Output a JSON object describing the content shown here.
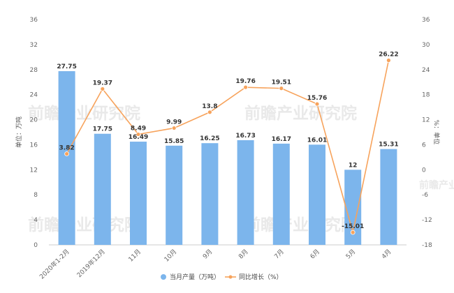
{
  "chart_data": {
    "type": "bar",
    "categories": [
      "2020年1-2月",
      "2019年12月",
      "11月",
      "10月",
      "9月",
      "8月",
      "7月",
      "6月",
      "5月",
      "4月"
    ],
    "series": [
      {
        "name": "当月产量（万吨）",
        "type": "bar",
        "axis": "left",
        "values": [
          27.75,
          17.75,
          16.49,
          15.85,
          16.25,
          16.73,
          16.17,
          16.01,
          12,
          15.31
        ],
        "labels": [
          "27.75",
          "17.75",
          "16.49",
          "15.85",
          "16.25",
          "16.73",
          "16.17",
          "16.01",
          "12",
          "15.31"
        ],
        "color": "#7cb5ec"
      },
      {
        "name": "同比增长（%）",
        "type": "line",
        "axis": "right",
        "values": [
          3.82,
          19.37,
          8.49,
          9.99,
          13.8,
          19.76,
          19.51,
          15.76,
          -15.01,
          26.22
        ],
        "labels": [
          "3.82",
          "19.37",
          "8.49",
          "9.99",
          "13.8",
          "19.76",
          "19.51",
          "15.76",
          "-15.01",
          "26.22"
        ],
        "color": "#f7a35c"
      }
    ],
    "ylabel_left": "单位：万吨",
    "ylabel_right": "%：单位",
    "ylim_left": [
      0,
      36
    ],
    "yticks_left": [
      0,
      4,
      8,
      12,
      16,
      20,
      24,
      28,
      32,
      36
    ],
    "ylim_right": [
      -18,
      36
    ],
    "yticks_right": [
      -18,
      -12,
      -6,
      0,
      6,
      12,
      18,
      24,
      30,
      36
    ],
    "grid": false,
    "legend_position": "bottom-center"
  },
  "watermark": "前瞻产业研究院",
  "colors": {
    "bar": "#7cb5ec",
    "line": "#f7a35c",
    "axis": "#cccccc"
  }
}
